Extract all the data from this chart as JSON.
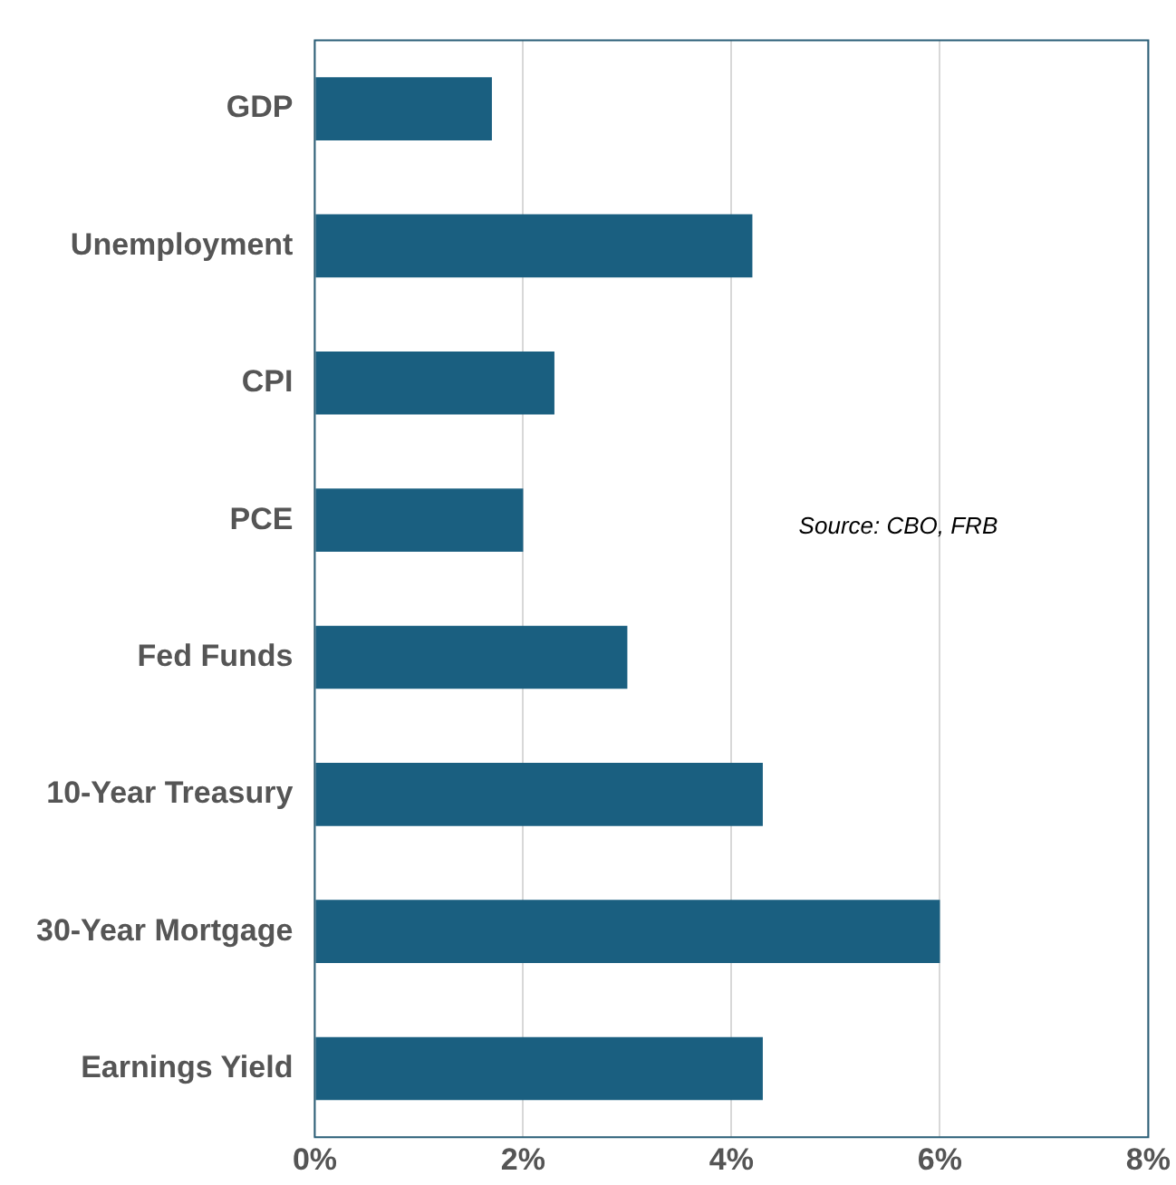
{
  "chart_data": {
    "type": "bar",
    "orientation": "horizontal",
    "categories": [
      "GDP",
      "Unemployment",
      "CPI",
      "PCE",
      "Fed Funds",
      "10-Year Treasury",
      "30-Year Mortgage",
      "Earnings Yield"
    ],
    "values": [
      1.7,
      4.2,
      2.3,
      2.0,
      3.0,
      4.3,
      6.0,
      4.3
    ],
    "color": "#1a5f80",
    "xlim": [
      0,
      8
    ],
    "xticks": [
      {
        "value": 0,
        "label": "0%"
      },
      {
        "value": 2,
        "label": "2%"
      },
      {
        "value": 4,
        "label": "4%"
      },
      {
        "value": 6,
        "label": "6%"
      },
      {
        "value": 8,
        "label": "8%"
      }
    ],
    "grid": "x",
    "legend": false,
    "annotations": [
      "Source: CBO, FRB"
    ]
  }
}
